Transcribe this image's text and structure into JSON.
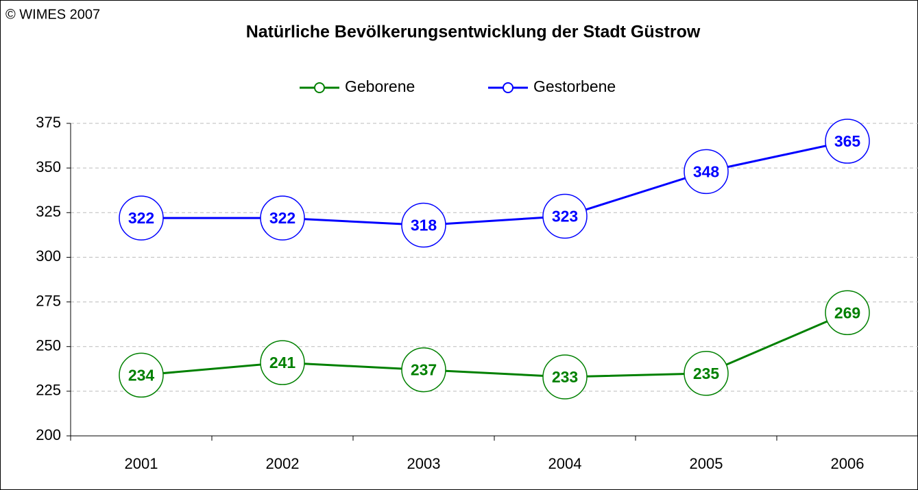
{
  "copyright": "© WIMES 2007",
  "chart_data": {
    "type": "line",
    "title": "Natürliche Bevölkerungsentwicklung der Stadt Güstrow",
    "categories": [
      "2001",
      "2002",
      "2003",
      "2004",
      "2005",
      "2006"
    ],
    "series": [
      {
        "name": "Geborene",
        "color": "#008000",
        "values": [
          234,
          241,
          237,
          233,
          235,
          269
        ]
      },
      {
        "name": "Gestorbene",
        "color": "#0000ff",
        "values": [
          322,
          322,
          318,
          323,
          348,
          365
        ]
      }
    ],
    "ylim": [
      200,
      375
    ],
    "yticks": [
      200,
      225,
      250,
      275,
      300,
      325,
      350,
      375
    ],
    "grid": true,
    "legend": "top"
  }
}
